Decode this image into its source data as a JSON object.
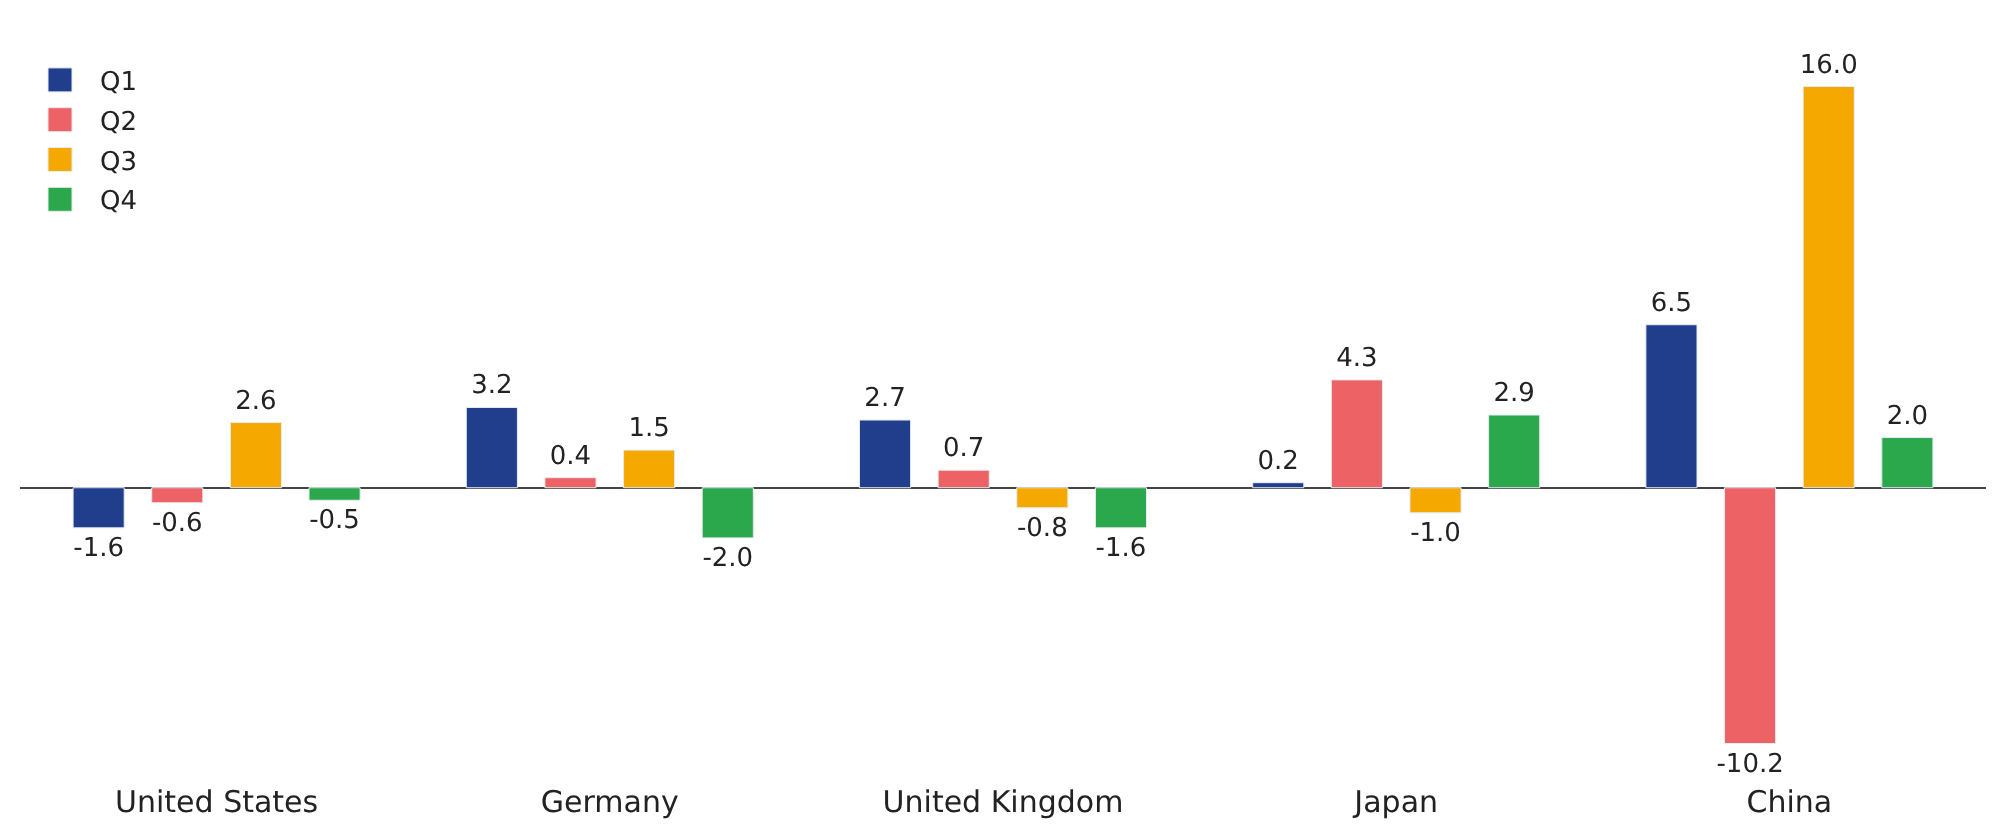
{
  "chart_data": {
    "type": "bar",
    "categories": [
      "United States",
      "Germany",
      "United Kingdom",
      "Japan",
      "China"
    ],
    "series": [
      {
        "name": "Q1",
        "color": "#213e8c",
        "values": [
          -1.6,
          3.2,
          2.7,
          0.2,
          6.5
        ],
        "value_labels": [
          "-1.6",
          "3.2",
          "2.7",
          "0.2",
          "6.5"
        ]
      },
      {
        "name": "Q2",
        "color": "#ec6265",
        "values": [
          -0.6,
          0.4,
          0.7,
          4.3,
          -10.2
        ],
        "value_labels": [
          "-0.6",
          "0.4",
          "0.7",
          "4.3",
          "-10.2"
        ]
      },
      {
        "name": "Q3",
        "color": "#f5a800",
        "values": [
          2.6,
          1.5,
          -0.8,
          -1.0,
          16.0
        ],
        "value_labels": [
          "2.6",
          "1.5",
          "-0.8",
          "-1.0",
          "16.0"
        ]
      },
      {
        "name": "Q4",
        "color": "#2aa84b",
        "values": [
          -0.5,
          -2.0,
          -1.6,
          2.9,
          2.0
        ],
        "value_labels": [
          "-0.5",
          "-2.0",
          "-1.6",
          "2.9",
          "2.0"
        ]
      }
    ],
    "legend": "top left"
  }
}
